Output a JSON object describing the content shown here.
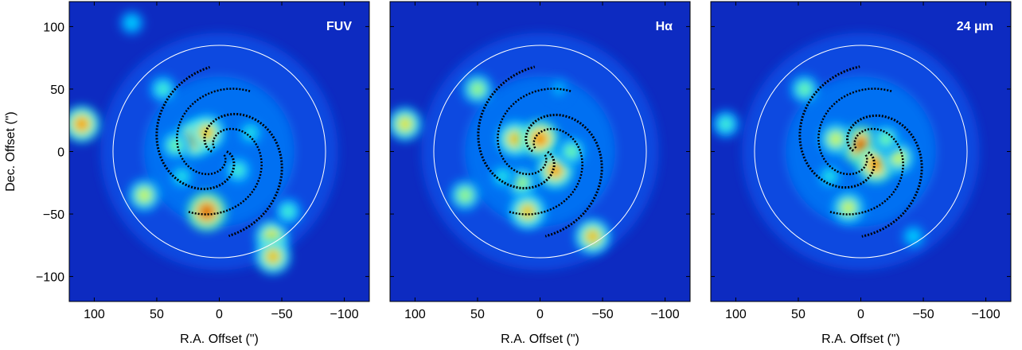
{
  "chart_data": [
    {
      "type": "heatmap",
      "panel_label": "FUV",
      "title": "",
      "xlabel": "R.A. Offset (\")",
      "ylabel": "Dec. Offset (\")",
      "xlim": [
        120,
        -120
      ],
      "ylim": [
        -120,
        120
      ],
      "xticks": [
        100,
        50,
        0,
        -50,
        -100
      ],
      "yticks": [
        100,
        50,
        0,
        -50,
        -100
      ],
      "xtick_labels": [
        "100",
        "50",
        "0",
        "−50",
        "−100"
      ],
      "ytick_labels": [
        "100",
        "50",
        "0",
        "−50",
        "−100"
      ],
      "colormap": "jet",
      "aperture_radius": 85,
      "hotspots": [
        {
          "x": 110,
          "y": 22,
          "v": 0.85
        },
        {
          "x": 60,
          "y": -35,
          "v": 0.7
        },
        {
          "x": 45,
          "y": 50,
          "v": 0.55
        },
        {
          "x": 20,
          "y": 10,
          "v": 0.85
        },
        {
          "x": 10,
          "y": 15,
          "v": 0.8
        },
        {
          "x": 35,
          "y": 5,
          "v": 0.6
        },
        {
          "x": 10,
          "y": -48,
          "v": 0.95
        },
        {
          "x": -15,
          "y": -15,
          "v": 0.55
        },
        {
          "x": -42,
          "y": -68,
          "v": 0.75
        },
        {
          "x": -43,
          "y": -84,
          "v": 0.8
        },
        {
          "x": -55,
          "y": -48,
          "v": 0.55
        },
        {
          "x": -25,
          "y": 15,
          "v": 0.5
        },
        {
          "x": 70,
          "y": 103,
          "v": 0.45
        },
        {
          "x": 30,
          "y": -20,
          "v": 0.5
        }
      ]
    },
    {
      "type": "heatmap",
      "panel_label": "Hα",
      "title": "",
      "xlabel": "R.A. Offset (\")",
      "ylabel": "",
      "xlim": [
        120,
        -120
      ],
      "ylim": [
        -120,
        120
      ],
      "xticks": [
        100,
        50,
        0,
        -50,
        -100
      ],
      "xtick_labels": [
        "100",
        "50",
        "0",
        "−50",
        "−100"
      ],
      "colormap": "jet",
      "aperture_radius": 85,
      "hotspots": [
        {
          "x": 108,
          "y": 22,
          "v": 0.75
        },
        {
          "x": 60,
          "y": -35,
          "v": 0.65
        },
        {
          "x": 50,
          "y": 50,
          "v": 0.65
        },
        {
          "x": 20,
          "y": 10,
          "v": 0.8
        },
        {
          "x": 0,
          "y": 10,
          "v": 0.9
        },
        {
          "x": -12,
          "y": -15,
          "v": 0.85
        },
        {
          "x": 15,
          "y": -25,
          "v": 0.65
        },
        {
          "x": -25,
          "y": 0,
          "v": 0.6
        },
        {
          "x": 10,
          "y": -48,
          "v": 0.8
        },
        {
          "x": -42,
          "y": -68,
          "v": 0.8
        },
        {
          "x": 30,
          "y": -20,
          "v": 0.5
        },
        {
          "x": -15,
          "y": 50,
          "v": 0.4
        }
      ]
    },
    {
      "type": "heatmap",
      "panel_label": "24 μm",
      "title": "",
      "xlabel": "R.A. Offset (\")",
      "ylabel": "",
      "xlim": [
        120,
        -120
      ],
      "ylim": [
        -120,
        120
      ],
      "xticks": [
        100,
        50,
        0,
        -50,
        -100
      ],
      "xtick_labels": [
        "100",
        "50",
        "0",
        "−50",
        "−100"
      ],
      "colormap": "jet",
      "aperture_radius": 85,
      "hotspots": [
        {
          "x": 108,
          "y": 22,
          "v": 0.55
        },
        {
          "x": 45,
          "y": 50,
          "v": 0.6
        },
        {
          "x": 0,
          "y": 5,
          "v": 0.95
        },
        {
          "x": -12,
          "y": -10,
          "v": 0.9
        },
        {
          "x": -30,
          "y": -5,
          "v": 0.7
        },
        {
          "x": 10,
          "y": -45,
          "v": 0.7
        },
        {
          "x": 20,
          "y": 10,
          "v": 0.7
        },
        {
          "x": -42,
          "y": -68,
          "v": 0.45
        },
        {
          "x": 25,
          "y": -20,
          "v": 0.5
        },
        {
          "x": -20,
          "y": 10,
          "v": 0.6
        }
      ]
    }
  ]
}
